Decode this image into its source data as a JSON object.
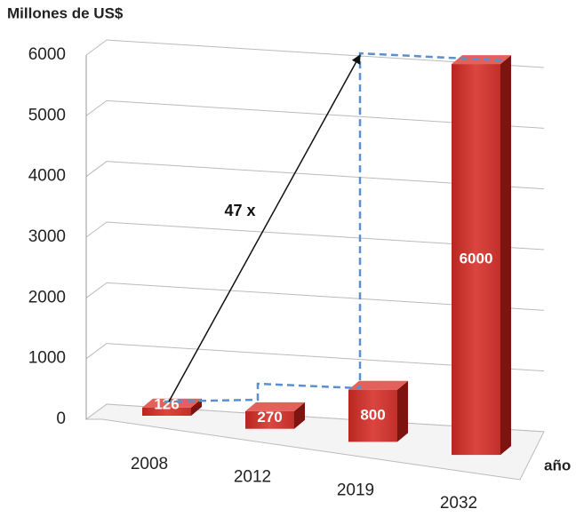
{
  "chart_data": {
    "type": "bar3d",
    "y_label": "Millones de US$",
    "x_label": "año",
    "annotation": "47 x",
    "categories": [
      "2008",
      "2012",
      "2019",
      "2032"
    ],
    "values": [
      126,
      270,
      800,
      6000
    ],
    "color": "#c8302c",
    "ylim": [
      0,
      6000
    ],
    "yticks": [
      0,
      1000,
      2000,
      3000,
      4000,
      5000,
      6000
    ],
    "grid": true
  }
}
